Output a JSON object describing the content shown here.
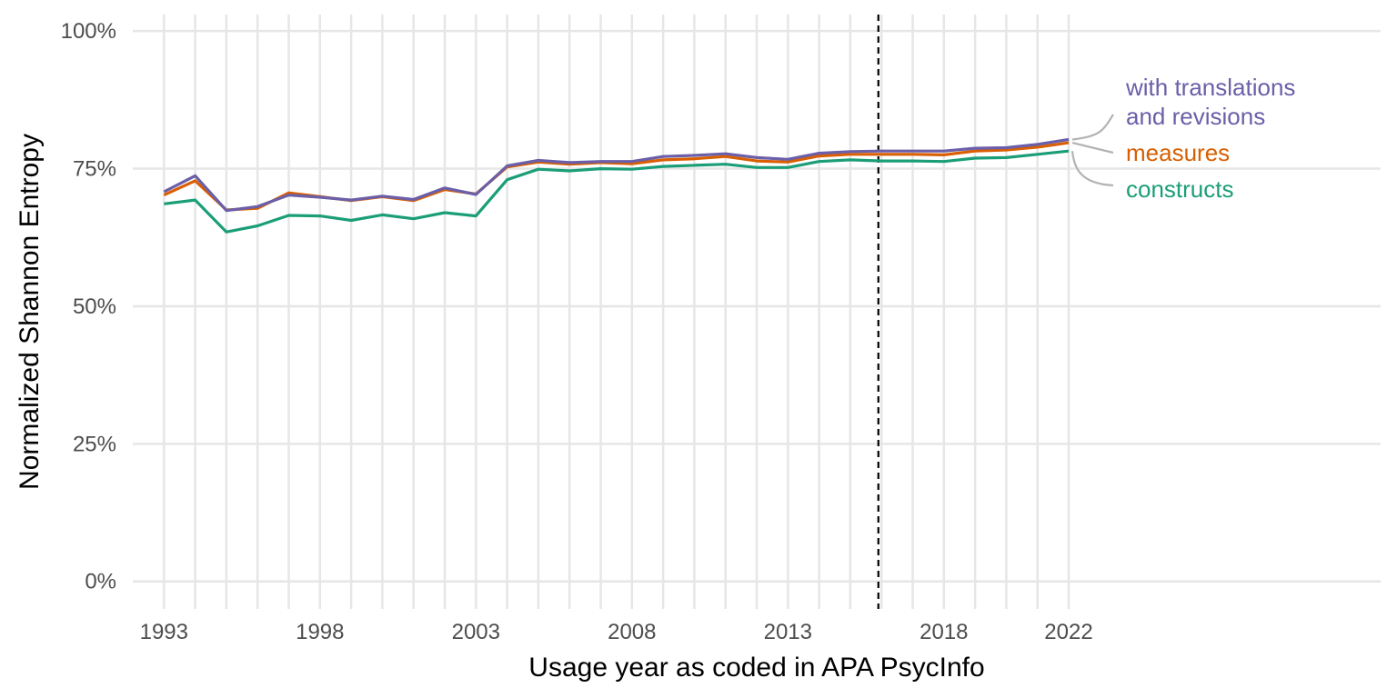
{
  "chart_data": {
    "type": "line",
    "title": "",
    "xlabel": "Usage year as coded in APA PsycInfo",
    "ylabel": "Normalized Shannon Entropy",
    "x": [
      1993,
      1994,
      1995,
      1996,
      1997,
      1998,
      1999,
      2000,
      2001,
      2002,
      2003,
      2004,
      2005,
      2006,
      2007,
      2008,
      2009,
      2010,
      2011,
      2012,
      2013,
      2014,
      2015,
      2016,
      2017,
      2018,
      2019,
      2020,
      2021,
      2022
    ],
    "x_ticks": [
      1993,
      1998,
      2003,
      2008,
      2013,
      2018,
      2022
    ],
    "x_tick_labels": [
      "1993",
      "1998",
      "2003",
      "2008",
      "2013",
      "2018",
      "2022"
    ],
    "xlim": [
      1992,
      2032
    ],
    "y_ticks": [
      0,
      25,
      50,
      75,
      100
    ],
    "y_tick_labels": [
      "0%",
      "25%",
      "50%",
      "75%",
      "100%"
    ],
    "ylim": [
      -5,
      103
    ],
    "grid": true,
    "legend": "direct labels at right end of lines",
    "reference_line": {
      "x": 2015.9,
      "style": "dashed",
      "color": "#000000"
    },
    "series": [
      {
        "name": "with translations and revisions",
        "label_lines": [
          "with translations",
          "and revisions"
        ],
        "color": "#6a5fa8",
        "values": [
          70.8,
          73.7,
          67.4,
          68.1,
          70.2,
          69.8,
          69.3,
          70.0,
          69.4,
          71.5,
          70.3,
          75.5,
          76.5,
          76.1,
          76.3,
          76.3,
          77.2,
          77.4,
          77.7,
          77.0,
          76.7,
          77.8,
          78.1,
          78.2,
          78.2,
          78.2,
          78.7,
          78.8,
          79.4,
          80.3
        ]
      },
      {
        "name": "measures",
        "label_lines": [
          "measures"
        ],
        "color": "#d95f02",
        "values": [
          70.2,
          72.8,
          67.5,
          67.8,
          70.6,
          69.9,
          69.2,
          69.9,
          69.2,
          71.2,
          70.4,
          75.3,
          76.2,
          75.8,
          76.1,
          75.9,
          76.6,
          76.8,
          77.2,
          76.4,
          76.2,
          77.3,
          77.6,
          77.6,
          77.6,
          77.5,
          78.2,
          78.4,
          78.9,
          79.7
        ]
      },
      {
        "name": "constructs",
        "label_lines": [
          "constructs"
        ],
        "color": "#1b9e77",
        "values": [
          68.6,
          69.3,
          63.5,
          64.6,
          66.5,
          66.4,
          65.6,
          66.6,
          65.9,
          67.0,
          66.4,
          73.0,
          74.9,
          74.6,
          75.0,
          74.9,
          75.4,
          75.6,
          75.8,
          75.2,
          75.2,
          76.3,
          76.6,
          76.4,
          76.4,
          76.3,
          76.9,
          77.0,
          77.6,
          78.2
        ]
      }
    ]
  }
}
